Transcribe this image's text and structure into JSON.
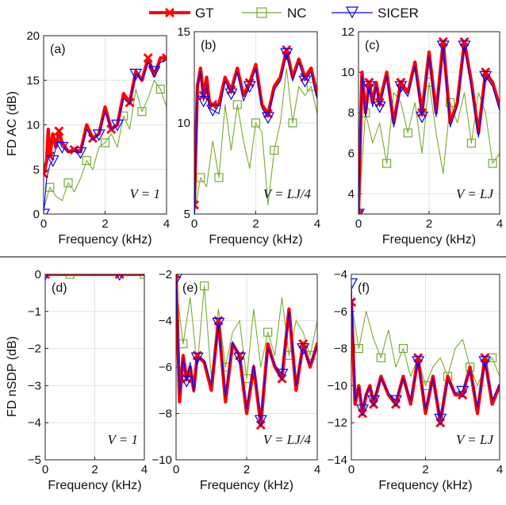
{
  "legend": {
    "entries": [
      {
        "name": "GT",
        "color": "#ff0000",
        "marker": "x-icon"
      },
      {
        "name": "NC",
        "color": "#77ac30",
        "marker": "square-icon"
      },
      {
        "name": "SICER",
        "color": "#0000ff",
        "marker": "triangle-down-icon"
      }
    ]
  },
  "row_labels": {
    "top": "FD AC (dB)",
    "bottom": "FD nSDP (dB)"
  },
  "chart_data": [
    {
      "type": "line",
      "panel": "(a)",
      "condition": "V = 1",
      "xlabel": "Frequency (kHz)",
      "ylabel": "FD AC (dB)",
      "xlim": [
        0,
        4
      ],
      "ylim": [
        0,
        20
      ],
      "xticks": [
        "0",
        "2",
        "4"
      ],
      "yticks": [
        "0",
        "5",
        "10",
        "15",
        "20"
      ],
      "grid": true,
      "series": [
        {
          "name": "GT",
          "x": [
            0,
            0.1,
            0.15,
            0.2,
            0.3,
            0.4,
            0.5,
            0.6,
            0.8,
            1.0,
            1.2,
            1.4,
            1.6,
            1.8,
            2.0,
            2.2,
            2.4,
            2.6,
            2.8,
            3.0,
            3.2,
            3.4,
            3.6,
            3.8,
            4.0
          ],
          "y": [
            4.5,
            6.0,
            9.5,
            6.5,
            9.0,
            7.5,
            9.3,
            8.0,
            7.0,
            7.2,
            7.0,
            10.0,
            8.5,
            9.0,
            12.0,
            9.5,
            10.0,
            13.5,
            12.5,
            16.0,
            15.0,
            17.5,
            15.5,
            17.5,
            17.5
          ]
        },
        {
          "name": "NC",
          "x": [
            0,
            0.2,
            0.4,
            0.6,
            0.8,
            1.0,
            1.2,
            1.4,
            1.6,
            1.8,
            2.0,
            2.2,
            2.4,
            2.6,
            2.8,
            3.0,
            3.2,
            3.4,
            3.6,
            3.8,
            4.0
          ],
          "y": [
            0.5,
            3.0,
            2.0,
            1.5,
            3.5,
            2.5,
            4.0,
            6.0,
            5.0,
            7.5,
            8.0,
            9.0,
            7.5,
            11.0,
            9.5,
            14.0,
            11.5,
            13.0,
            15.0,
            14.0,
            12.0
          ]
        },
        {
          "name": "SICER",
          "x": [
            0,
            0.1,
            0.2,
            0.3,
            0.4,
            0.5,
            0.6,
            0.8,
            1.0,
            1.2,
            1.4,
            1.6,
            1.8,
            2.0,
            2.2,
            2.4,
            2.6,
            2.8,
            3.0,
            3.2,
            3.4,
            3.6,
            3.8,
            4.0
          ],
          "y": [
            0,
            4.0,
            5.5,
            6.0,
            7.5,
            8.2,
            7.5,
            7.0,
            7.0,
            6.9,
            9.5,
            8.3,
            8.9,
            11.5,
            9.5,
            10.0,
            13.0,
            12.3,
            15.7,
            15.0,
            17.0,
            16.0,
            17.0,
            17.3
          ]
        }
      ]
    },
    {
      "type": "line",
      "panel": "(b)",
      "condition": "V = LJ/4",
      "xlabel": "Frequency (kHz)",
      "ylabel": "",
      "xlim": [
        0,
        4
      ],
      "ylim": [
        5,
        15
      ],
      "xticks": [
        "0",
        "2",
        "4"
      ],
      "yticks": [
        "5",
        "10",
        "15"
      ],
      "grid": true,
      "series": [
        {
          "name": "GT",
          "x": [
            0,
            0.1,
            0.2,
            0.3,
            0.4,
            0.5,
            0.6,
            0.8,
            1.0,
            1.2,
            1.4,
            1.6,
            1.8,
            2.0,
            2.2,
            2.4,
            2.6,
            2.8,
            3.0,
            3.2,
            3.4,
            3.6,
            3.8,
            4.0
          ],
          "y": [
            5.5,
            12.0,
            13.0,
            11.5,
            12.5,
            11.0,
            11.0,
            11.0,
            12.5,
            11.8,
            13.0,
            11.5,
            12.2,
            13.2,
            11.0,
            10.5,
            12.0,
            12.5,
            14.0,
            12.5,
            13.5,
            12.5,
            13.0,
            11.5
          ]
        },
        {
          "name": "NC",
          "x": [
            0,
            0.2,
            0.4,
            0.6,
            0.8,
            1.0,
            1.2,
            1.4,
            1.6,
            1.8,
            2.0,
            2.2,
            2.4,
            2.6,
            2.8,
            3.0,
            3.2,
            3.4,
            3.6,
            3.8,
            4.0
          ],
          "y": [
            5.0,
            7.0,
            6.5,
            9.0,
            7.0,
            11.0,
            8.5,
            11.0,
            9.0,
            7.5,
            10.0,
            9.5,
            5.5,
            8.5,
            10.0,
            13.0,
            10.0,
            12.0,
            11.5,
            12.0,
            10.5
          ]
        },
        {
          "name": "SICER",
          "x": [
            0,
            0.1,
            0.2,
            0.3,
            0.4,
            0.5,
            0.6,
            0.8,
            1.0,
            1.2,
            1.4,
            1.6,
            1.8,
            2.0,
            2.2,
            2.4,
            2.6,
            2.8,
            3.0,
            3.2,
            3.4,
            3.6,
            3.8,
            4.0
          ],
          "y": [
            4.0,
            12.0,
            12.8,
            11.2,
            12.0,
            10.8,
            10.7,
            10.5,
            12.3,
            11.6,
            12.8,
            11.2,
            12.0,
            13.0,
            10.8,
            10.3,
            11.8,
            12.3,
            13.8,
            12.3,
            13.3,
            12.3,
            12.8,
            11.3
          ]
        }
      ]
    },
    {
      "type": "line",
      "panel": "(c)",
      "condition": "V = LJ",
      "xlabel": "Frequency (kHz)",
      "ylabel": "",
      "xlim": [
        0,
        4
      ],
      "ylim": [
        3,
        12
      ],
      "xticks": [
        "0",
        "2",
        "4"
      ],
      "yticks": [
        "4",
        "6",
        "8",
        "10",
        "12"
      ],
      "grid": true,
      "series": [
        {
          "name": "GT",
          "x": [
            0,
            0.1,
            0.2,
            0.3,
            0.4,
            0.5,
            0.6,
            0.8,
            1.0,
            1.2,
            1.4,
            1.6,
            1.8,
            2.0,
            2.2,
            2.4,
            2.6,
            2.8,
            3.0,
            3.2,
            3.4,
            3.6,
            3.8,
            4.0
          ],
          "y": [
            3.0,
            10.0,
            8.0,
            9.5,
            8.5,
            9.5,
            8.5,
            10.0,
            7.5,
            9.5,
            9.0,
            10.5,
            8.0,
            11.0,
            8.0,
            11.5,
            7.5,
            8.5,
            11.5,
            9.5,
            7.0,
            10.0,
            9.5,
            8.3
          ]
        },
        {
          "name": "NC",
          "x": [
            0,
            0.2,
            0.4,
            0.6,
            0.8,
            1.0,
            1.2,
            1.4,
            1.6,
            1.8,
            2.0,
            2.2,
            2.4,
            2.6,
            2.8,
            3.0,
            3.2,
            3.4,
            3.6,
            3.8,
            4.0
          ],
          "y": [
            3.0,
            8.0,
            6.5,
            7.5,
            5.5,
            9.0,
            8.5,
            7.0,
            8.5,
            6.0,
            9.5,
            7.0,
            5.0,
            8.5,
            7.5,
            9.0,
            6.5,
            9.0,
            8.0,
            5.5,
            6.0
          ]
        },
        {
          "name": "SICER",
          "x": [
            0,
            0.1,
            0.2,
            0.3,
            0.4,
            0.5,
            0.6,
            0.8,
            1.0,
            1.2,
            1.4,
            1.6,
            1.8,
            2.0,
            2.2,
            2.4,
            2.6,
            2.8,
            3.0,
            3.2,
            3.4,
            3.6,
            3.8,
            4.0
          ],
          "y": [
            3.0,
            9.8,
            7.8,
            9.3,
            8.3,
            9.3,
            8.3,
            9.8,
            7.3,
            9.3,
            8.8,
            10.3,
            7.8,
            10.8,
            7.8,
            11.3,
            7.3,
            8.3,
            11.3,
            9.3,
            6.8,
            9.8,
            9.3,
            8.1
          ]
        }
      ]
    },
    {
      "type": "line",
      "panel": "(d)",
      "condition": "V = 1",
      "xlabel": "Frequency (kHz)",
      "ylabel": "FD nSDP (dB)",
      "xlim": [
        0,
        4
      ],
      "ylim": [
        -5,
        0
      ],
      "xticks": [
        "0",
        "2",
        "4"
      ],
      "yticks": [
        "-5",
        "-4",
        "-3",
        "-2",
        "-1",
        "0"
      ],
      "grid": true,
      "series": [
        {
          "name": "GT",
          "x": [
            0,
            1,
            2,
            3,
            4
          ],
          "y": [
            0,
            0,
            0,
            0,
            0
          ]
        },
        {
          "name": "NC",
          "x": [
            0,
            1,
            2,
            3,
            4
          ],
          "y": [
            0,
            0,
            0,
            0,
            0
          ]
        },
        {
          "name": "SICER",
          "x": [
            0,
            1,
            2,
            3,
            4
          ],
          "y": [
            0,
            0,
            0,
            0,
            0
          ]
        }
      ]
    },
    {
      "type": "line",
      "panel": "(e)",
      "condition": "V = LJ/4",
      "xlabel": "Frequency (kHz)",
      "ylabel": "",
      "xlim": [
        0,
        4
      ],
      "ylim": [
        -10,
        -2
      ],
      "xticks": [
        "0",
        "2",
        "4"
      ],
      "yticks": [
        "-10",
        "-8",
        "-6",
        "-4",
        "-2"
      ],
      "grid": true,
      "series": [
        {
          "name": "GT",
          "x": [
            0,
            0.1,
            0.2,
            0.3,
            0.4,
            0.5,
            0.6,
            0.8,
            1.0,
            1.2,
            1.4,
            1.6,
            1.8,
            2.0,
            2.2,
            2.4,
            2.6,
            2.8,
            3.0,
            3.2,
            3.4,
            3.6,
            3.8,
            4.0
          ],
          "y": [
            -2.0,
            -7.5,
            -5.5,
            -6.5,
            -6.0,
            -7.0,
            -5.5,
            -5.8,
            -7.0,
            -4.0,
            -7.5,
            -5.0,
            -5.5,
            -8.0,
            -6.0,
            -8.5,
            -5.0,
            -6.0,
            -6.5,
            -3.5,
            -7.0,
            -5.0,
            -6.0,
            -5.0
          ]
        },
        {
          "name": "NC",
          "x": [
            0,
            0.2,
            0.4,
            0.6,
            0.8,
            1.0,
            1.2,
            1.4,
            1.6,
            1.8,
            2.0,
            2.2,
            2.4,
            2.6,
            2.8,
            3.0,
            3.2,
            3.4,
            3.6,
            3.8,
            4.0
          ],
          "y": [
            -2.5,
            -5.0,
            -3.0,
            -6.0,
            -2.5,
            -6.5,
            -3.5,
            -6.0,
            -4.5,
            -4.0,
            -6.5,
            -3.5,
            -6.0,
            -4.5,
            -5.5,
            -3.0,
            -5.5,
            -4.0,
            -4.5,
            -5.5,
            -4.0
          ]
        },
        {
          "name": "SICER",
          "x": [
            0,
            0.1,
            0.2,
            0.3,
            0.4,
            0.5,
            0.6,
            0.8,
            1.0,
            1.2,
            1.4,
            1.6,
            1.8,
            2.0,
            2.2,
            2.4,
            2.6,
            2.8,
            3.0,
            3.2,
            3.4,
            3.6,
            3.8,
            4.0
          ],
          "y": [
            -2.2,
            -7.2,
            -5.6,
            -6.6,
            -5.8,
            -7.1,
            -5.6,
            -5.7,
            -6.8,
            -4.1,
            -7.3,
            -4.9,
            -5.6,
            -7.8,
            -5.9,
            -8.3,
            -5.2,
            -5.9,
            -6.3,
            -3.6,
            -6.8,
            -5.2,
            -5.9,
            -5.1
          ]
        }
      ]
    },
    {
      "type": "line",
      "panel": "(f)",
      "condition": "V = LJ",
      "xlabel": "Frequency (kHz)",
      "ylabel": "",
      "xlim": [
        0,
        4
      ],
      "ylim": [
        -14,
        -4
      ],
      "xticks": [
        "0",
        "2",
        "4"
      ],
      "yticks": [
        "-14",
        "-12",
        "-10",
        "-8",
        "-6",
        "-4"
      ],
      "grid": true,
      "series": [
        {
          "name": "GT",
          "x": [
            0,
            0.1,
            0.2,
            0.3,
            0.4,
            0.5,
            0.6,
            0.8,
            1.0,
            1.2,
            1.4,
            1.6,
            1.8,
            2.0,
            2.2,
            2.4,
            2.6,
            2.8,
            3.0,
            3.2,
            3.4,
            3.6,
            3.8,
            4.0
          ],
          "y": [
            -5.5,
            -11.0,
            -10.0,
            -11.5,
            -10.5,
            -10.0,
            -11.0,
            -9.5,
            -10.5,
            -11.0,
            -9.5,
            -11.0,
            -8.5,
            -11.5,
            -9.5,
            -12.0,
            -9.5,
            -10.5,
            -10.5,
            -9.0,
            -11.5,
            -8.5,
            -11.0,
            -10.0
          ]
        },
        {
          "name": "NC",
          "x": [
            0,
            0.2,
            0.4,
            0.6,
            0.8,
            1.0,
            1.2,
            1.4,
            1.6,
            1.8,
            2.0,
            2.2,
            2.4,
            2.6,
            2.8,
            3.0,
            3.2,
            3.4,
            3.6,
            3.8,
            4.0
          ],
          "y": [
            -5.5,
            -8.0,
            -6.0,
            -7.5,
            -8.5,
            -7.0,
            -9.0,
            -8.0,
            -9.5,
            -8.5,
            -10.0,
            -9.0,
            -8.5,
            -9.5,
            -8.0,
            -7.5,
            -9.0,
            -10.0,
            -9.0,
            -8.5,
            -9.5
          ]
        },
        {
          "name": "SICER",
          "x": [
            0,
            0.1,
            0.2,
            0.3,
            0.4,
            0.5,
            0.6,
            0.8,
            1.0,
            1.2,
            1.4,
            1.6,
            1.8,
            2.0,
            2.2,
            2.4,
            2.6,
            2.8,
            3.0,
            3.2,
            3.4,
            3.6,
            3.8,
            4.0
          ],
          "y": [
            -4.5,
            -10.8,
            -10.1,
            -11.3,
            -10.4,
            -10.1,
            -10.8,
            -9.6,
            -10.4,
            -10.8,
            -9.6,
            -10.8,
            -8.7,
            -11.3,
            -9.6,
            -11.8,
            -9.7,
            -10.4,
            -10.3,
            -9.2,
            -11.2,
            -8.7,
            -10.8,
            -9.9
          ]
        }
      ]
    }
  ]
}
